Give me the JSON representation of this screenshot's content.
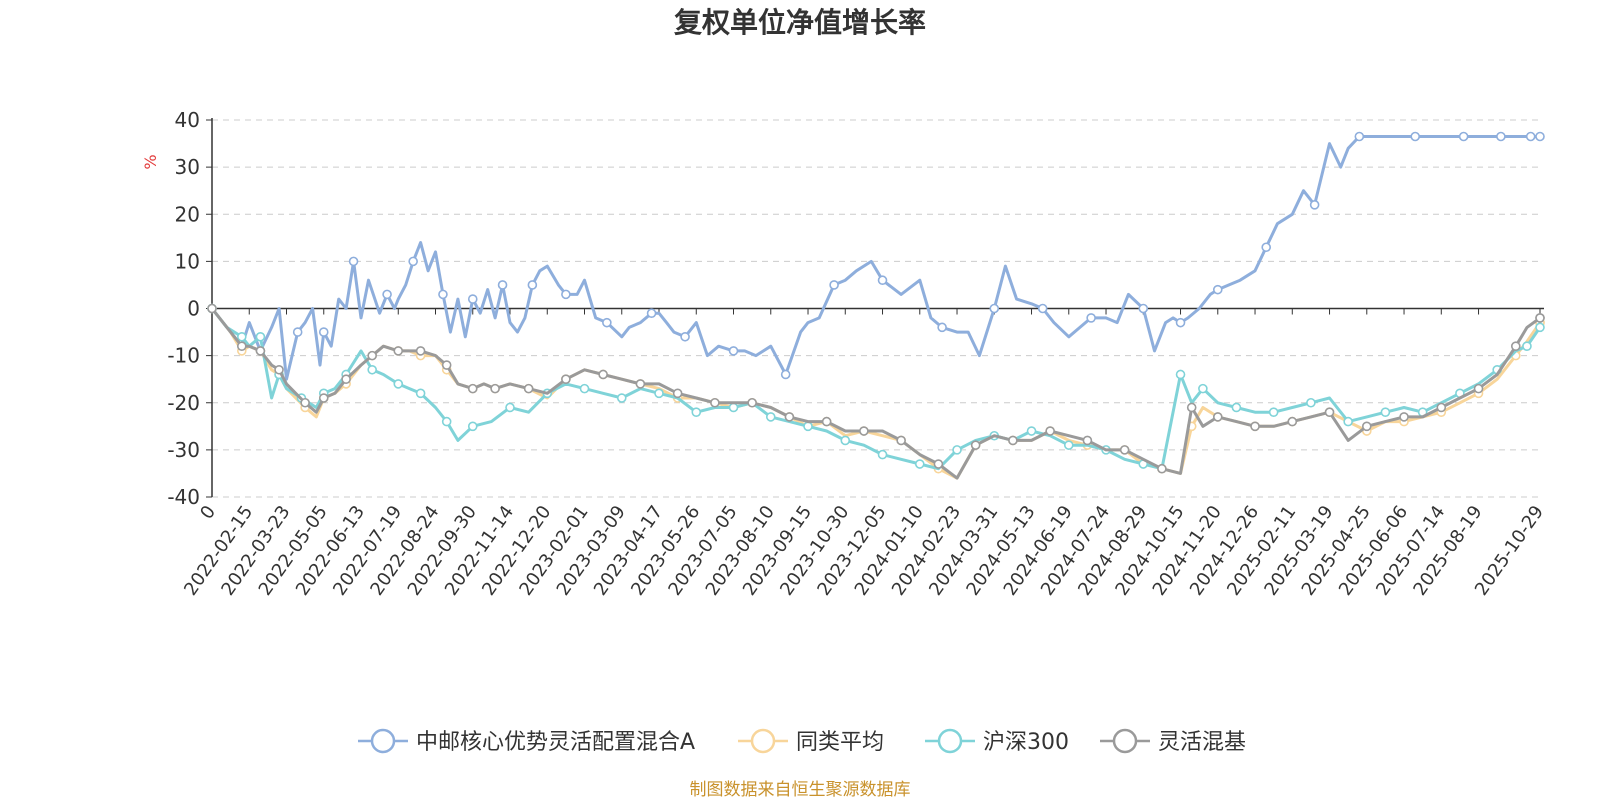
{
  "colors": {
    "fund": "#8eaedc",
    "peer_avg": "#f8d59a",
    "hs300": "#7fd3d8",
    "flex_mixed": "#9a9a9a",
    "grid": "#cccccc",
    "axis": "#333333",
    "source": "#c9922c",
    "unit": "#e23b3b"
  },
  "source_note": "制图数据来自恒生聚源数据库",
  "chart_data": {
    "type": "line",
    "title": "复权单位净值增长率",
    "ylabel": "%",
    "xlabel": "",
    "ylim": [
      -40,
      40
    ],
    "yticks": [
      -40,
      -30,
      -20,
      -10,
      0,
      10,
      20,
      30,
      40
    ],
    "grid": true,
    "legend_position": "bottom",
    "x_tick_labels": [
      "0",
      "2022-02-15",
      "2022-03-23",
      "2022-05-05",
      "2022-06-13",
      "2022-07-19",
      "2022-08-24",
      "2022-09-30",
      "2022-11-14",
      "2022-12-20",
      "2023-02-01",
      "2023-03-09",
      "2023-04-17",
      "2023-05-26",
      "2023-07-05",
      "2023-08-10",
      "2023-09-15",
      "2023-10-30",
      "2023-12-05",
      "2024-01-10",
      "2024-02-23",
      "2024-03-31",
      "2024-05-13",
      "2024-06-19",
      "2024-07-24",
      "2024-08-29",
      "2024-10-15",
      "2024-11-20",
      "2024-12-26",
      "2025-02-11",
      "2025-03-19",
      "2025-04-25",
      "2025-06-06",
      "2025-07-14",
      "2025-08-19",
      "2025-10-29"
    ],
    "x_tick_positions": [
      0,
      1,
      2,
      3,
      4,
      5,
      6,
      7,
      8,
      9,
      10,
      11,
      12,
      13,
      14,
      15,
      16,
      17,
      18,
      19,
      20,
      21,
      22,
      23,
      24,
      25,
      26,
      27,
      28,
      29,
      30,
      31,
      32,
      33,
      34,
      35.65
    ],
    "x_range": [
      0,
      35.65
    ],
    "series": [
      {
        "name": "中邮核心优势灵活配置混合A",
        "color_key": "fund",
        "x": [
          0,
          0.5,
          0.8,
          1.0,
          1.3,
          1.6,
          1.8,
          2.0,
          2.3,
          2.5,
          2.7,
          2.9,
          3.0,
          3.2,
          3.4,
          3.6,
          3.8,
          4.0,
          4.2,
          4.5,
          4.7,
          4.9,
          5.0,
          5.2,
          5.4,
          5.6,
          5.8,
          6.0,
          6.2,
          6.4,
          6.6,
          6.8,
          7.0,
          7.2,
          7.4,
          7.6,
          7.8,
          8.0,
          8.2,
          8.4,
          8.6,
          8.8,
          9.0,
          9.3,
          9.5,
          9.8,
          10.0,
          10.3,
          10.6,
          11.0,
          11.2,
          11.5,
          11.8,
          12.0,
          12.2,
          12.4,
          12.7,
          13.0,
          13.3,
          13.6,
          14.0,
          14.3,
          14.6,
          15.0,
          15.4,
          15.8,
          16.0,
          16.3,
          16.7,
          17.0,
          17.3,
          17.7,
          18.0,
          18.5,
          19.0,
          19.3,
          19.6,
          20.0,
          20.3,
          20.6,
          21.0,
          21.3,
          21.6,
          22.0,
          22.3,
          22.6,
          23.0,
          23.3,
          23.6,
          24.0,
          24.3,
          24.6,
          25.0,
          25.3,
          25.6,
          25.8,
          26.0,
          26.2,
          26.5,
          26.8,
          27.0,
          27.3,
          27.6,
          28.0,
          28.3,
          28.6,
          29.0,
          29.3,
          29.6,
          30.0,
          30.3,
          30.5,
          30.8,
          31.0,
          31.5,
          32.0,
          32.3,
          32.6,
          33.0,
          33.3,
          33.6,
          34.0,
          34.2,
          34.4,
          34.6,
          34.8,
          35.0,
          35.2,
          35.4,
          35.65
        ],
        "y": [
          0,
          -5,
          -8,
          -3,
          -9,
          -4,
          0,
          -15,
          -5,
          -3,
          0,
          -12,
          -5,
          -8,
          2,
          0,
          10,
          -2,
          6,
          -1,
          3,
          0,
          2,
          5,
          10,
          14,
          8,
          12,
          3,
          -5,
          2,
          -6,
          2,
          -1,
          4,
          -2,
          5,
          -3,
          -5,
          -2,
          5,
          8,
          9,
          5,
          3,
          3,
          6,
          -2,
          -3,
          -6,
          -4,
          -3,
          -1,
          -1,
          -3,
          -5,
          -6,
          -3,
          -10,
          -8,
          -9,
          -9,
          -10,
          -8,
          -14,
          -5,
          -3,
          -2,
          5,
          6,
          8,
          10,
          6,
          3,
          6,
          -2,
          -4,
          -5,
          -5,
          -10,
          0,
          9,
          2,
          1,
          0,
          -3,
          -6,
          -4,
          -2,
          -2,
          -3,
          3,
          0,
          -9,
          -3,
          -2,
          -3,
          -2,
          0,
          3,
          4,
          5,
          6,
          8,
          13,
          18,
          20,
          25,
          22,
          35,
          30,
          34,
          36.5,
          36.5,
          36.5,
          36.5,
          36.5,
          36.5,
          36.5,
          36.5,
          36.5,
          36.5,
          36.5,
          36.5,
          36.5,
          36.5,
          36.5,
          36.5,
          36.5,
          36.5
        ]
      },
      {
        "name": "同类平均",
        "color_key": "peer_avg",
        "x": [
          0,
          0.5,
          0.8,
          1.0,
          1.3,
          1.6,
          1.8,
          2.0,
          2.5,
          2.8,
          3.0,
          3.3,
          3.6,
          4.0,
          4.3,
          4.6,
          5.0,
          5.3,
          5.6,
          6.0,
          6.3,
          6.6,
          7.0,
          7.3,
          7.6,
          8.0,
          8.5,
          9.0,
          9.5,
          10.0,
          10.5,
          11.0,
          11.5,
          12.0,
          12.5,
          13.0,
          13.5,
          14.0,
          14.5,
          15.0,
          15.5,
          16.0,
          16.5,
          17.0,
          17.5,
          18.0,
          18.5,
          19.0,
          19.5,
          20.0,
          20.5,
          21.0,
          21.5,
          22.0,
          22.5,
          23.0,
          23.5,
          24.0,
          24.5,
          25.0,
          25.5,
          26.0,
          26.3,
          26.6,
          27.0,
          27.5,
          28.0,
          28.5,
          29.0,
          29.5,
          30.0,
          30.5,
          31.0,
          31.5,
          32.0,
          32.5,
          33.0,
          33.5,
          34.0,
          34.5,
          35.0,
          35.3,
          35.65
        ],
        "y": [
          0,
          -5,
          -9,
          -8,
          -9,
          -13,
          -14,
          -17,
          -21,
          -23,
          -19,
          -18,
          -16,
          -12,
          -10,
          -8,
          -9,
          -9,
          -10,
          -10,
          -13,
          -16,
          -17,
          -16,
          -17,
          -16,
          -17,
          -19,
          -15,
          -13,
          -14,
          -15,
          -16,
          -17,
          -19,
          -19,
          -20,
          -21,
          -20,
          -21,
          -23,
          -25,
          -24,
          -27,
          -26,
          -27,
          -28,
          -31,
          -34,
          -36,
          -29,
          -27,
          -28,
          -28,
          -26,
          -28,
          -29,
          -30,
          -30,
          -33,
          -34,
          -35,
          -25,
          -21,
          -23,
          -24,
          -25,
          -25,
          -24,
          -23,
          -22,
          -24,
          -26,
          -24,
          -24,
          -23,
          -22,
          -20,
          -18,
          -15,
          -10,
          -7,
          -3
        ]
      },
      {
        "name": "沪深300",
        "color_key": "hs300",
        "x": [
          0,
          0.4,
          0.8,
          1.0,
          1.3,
          1.6,
          1.8,
          2.0,
          2.4,
          2.8,
          3.0,
          3.3,
          3.6,
          4.0,
          4.3,
          4.6,
          5.0,
          5.3,
          5.6,
          6.0,
          6.3,
          6.6,
          7.0,
          7.5,
          8.0,
          8.5,
          9.0,
          9.5,
          10.0,
          10.5,
          11.0,
          11.5,
          12.0,
          12.5,
          13.0,
          13.5,
          14.0,
          14.5,
          15.0,
          15.5,
          16.0,
          16.5,
          17.0,
          17.5,
          18.0,
          18.5,
          19.0,
          19.5,
          20.0,
          20.5,
          21.0,
          21.5,
          22.0,
          22.5,
          23.0,
          23.5,
          24.0,
          24.5,
          25.0,
          25.5,
          26.0,
          26.3,
          26.6,
          27.0,
          27.5,
          28.0,
          28.5,
          29.0,
          29.5,
          30.0,
          30.5,
          31.0,
          31.5,
          32.0,
          32.5,
          33.0,
          33.5,
          34.0,
          34.5,
          35.0,
          35.3,
          35.65
        ],
        "y": [
          0,
          -4,
          -6,
          -8,
          -6,
          -19,
          -14,
          -17,
          -19,
          -21,
          -18,
          -17,
          -14,
          -9,
          -13,
          -14,
          -16,
          -17,
          -18,
          -21,
          -24,
          -28,
          -25,
          -24,
          -21,
          -22,
          -18,
          -16,
          -17,
          -18,
          -19,
          -17,
          -18,
          -19,
          -22,
          -21,
          -21,
          -20,
          -23,
          -24,
          -25,
          -26,
          -28,
          -29,
          -31,
          -32,
          -33,
          -34,
          -30,
          -28,
          -27,
          -28,
          -26,
          -27,
          -29,
          -29,
          -30,
          -32,
          -33,
          -34,
          -14,
          -20,
          -17,
          -20,
          -21,
          -22,
          -22,
          -21,
          -20,
          -19,
          -24,
          -23,
          -22,
          -21,
          -22,
          -20,
          -18,
          -16,
          -13,
          -9,
          -8,
          -4
        ]
      },
      {
        "name": "灵活混基",
        "color_key": "flex_mixed",
        "x": [
          0,
          0.5,
          0.8,
          1.0,
          1.3,
          1.6,
          1.8,
          2.0,
          2.5,
          2.8,
          3.0,
          3.3,
          3.6,
          4.0,
          4.3,
          4.6,
          5.0,
          5.3,
          5.6,
          6.0,
          6.3,
          6.6,
          7.0,
          7.3,
          7.6,
          8.0,
          8.5,
          9.0,
          9.5,
          10.0,
          10.5,
          11.0,
          11.5,
          12.0,
          12.5,
          13.0,
          13.5,
          14.0,
          14.5,
          15.0,
          15.5,
          16.0,
          16.5,
          17.0,
          17.5,
          18.0,
          18.5,
          19.0,
          19.5,
          20.0,
          20.5,
          21.0,
          21.5,
          22.0,
          22.5,
          23.0,
          23.5,
          24.0,
          24.5,
          25.0,
          25.5,
          26.0,
          26.3,
          26.6,
          27.0,
          27.5,
          28.0,
          28.5,
          29.0,
          29.5,
          30.0,
          30.5,
          31.0,
          31.5,
          32.0,
          32.5,
          33.0,
          33.5,
          34.0,
          34.5,
          35.0,
          35.3,
          35.65
        ],
        "y": [
          0,
          -5,
          -8,
          -8,
          -9,
          -12,
          -13,
          -16,
          -20,
          -22,
          -19,
          -18,
          -15,
          -12,
          -10,
          -8,
          -9,
          -9,
          -9,
          -10,
          -12,
          -16,
          -17,
          -16,
          -17,
          -16,
          -17,
          -18,
          -15,
          -13,
          -14,
          -15,
          -16,
          -16,
          -18,
          -19,
          -20,
          -20,
          -20,
          -21,
          -23,
          -24,
          -24,
          -26,
          -26,
          -26,
          -28,
          -31,
          -33,
          -36,
          -29,
          -27,
          -28,
          -28,
          -26,
          -27,
          -28,
          -30,
          -30,
          -32,
          -34,
          -35,
          -21,
          -25,
          -23,
          -24,
          -25,
          -25,
          -24,
          -23,
          -22,
          -28,
          -25,
          -24,
          -23,
          -23,
          -21,
          -19,
          -17,
          -14,
          -8,
          -4,
          -2
        ]
      }
    ]
  }
}
